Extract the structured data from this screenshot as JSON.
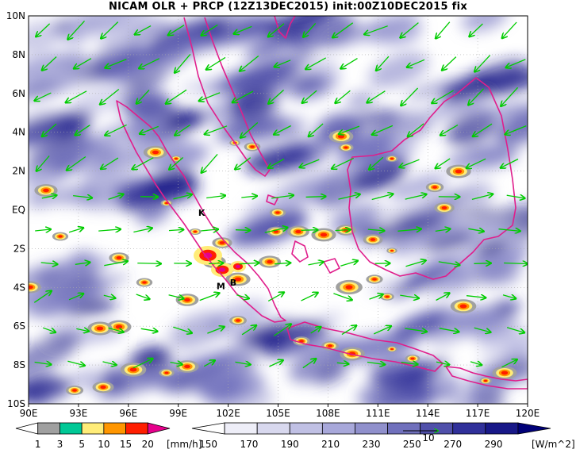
{
  "title": "NICAM OLR + PRCP (12Z13DEC2015) init:00Z10DEC2015 fix",
  "map": {
    "lon_labels": [
      "90E",
      "93E",
      "96E",
      "99E",
      "102E",
      "105E",
      "108E",
      "111E",
      "114E",
      "117E",
      "120E"
    ],
    "lat_labels": [
      "10N",
      "8N",
      "6N",
      "4N",
      "2N",
      "EQ",
      "2S",
      "4S",
      "6S",
      "8S",
      "10S"
    ],
    "lon_range": [
      90,
      120
    ],
    "lat_range": [
      -10,
      10
    ],
    "place_markers": [
      {
        "text": "K",
        "lon": 100.2,
        "lat": -0.3
      },
      {
        "text": "M",
        "lon": 101.3,
        "lat": -4.1
      },
      {
        "text": "B",
        "lon": 102.1,
        "lat": -3.9
      }
    ]
  },
  "precip_colorbar": {
    "labels": [
      "1",
      "3",
      "5",
      "10",
      "15",
      "20"
    ],
    "unit": "[mm/h]",
    "colors": [
      "#ffffff",
      "#a0a0a0",
      "#00c896",
      "#ffec78",
      "#ff9600",
      "#ff1e00",
      "#e6008c"
    ]
  },
  "olr_colorbar": {
    "labels": [
      "150",
      "170",
      "190",
      "210",
      "230",
      "250",
      "270",
      "290"
    ],
    "unit": "[W/m^2]",
    "colors": [
      "#ffffff",
      "#eeeef8",
      "#d8d8ee",
      "#c0c0e4",
      "#a8a8da",
      "#9090cc",
      "#7070bc",
      "#5050aa",
      "#30309a",
      "#181888",
      "#000078"
    ]
  },
  "wind_reference": {
    "label": "10"
  },
  "colors": {
    "wind_arrow": "#00cc00",
    "coastline": "#e01e8c",
    "grid": "#aaaaaa"
  }
}
